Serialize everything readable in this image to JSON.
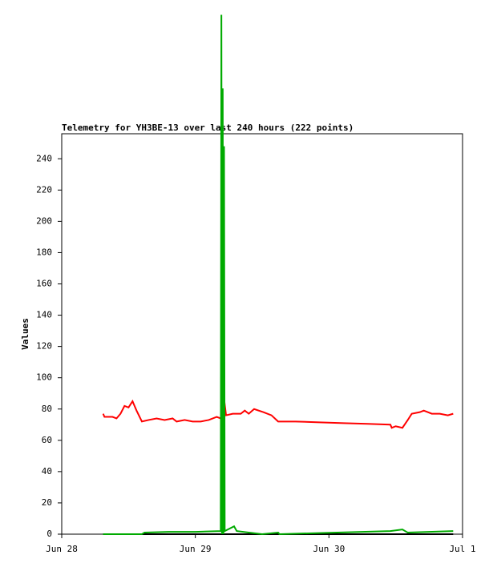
{
  "chart_data": {
    "type": "line",
    "title": "Telemetry for YH3BE-13 over last 240 hours (222 points)",
    "y_label": "Values",
    "xlim": [
      0,
      3
    ],
    "xticks": [
      {
        "value": 0,
        "label": "Jun 28"
      },
      {
        "value": 1,
        "label": "Jun 29"
      },
      {
        "value": 2,
        "label": "Jun 30"
      },
      {
        "value": 3,
        "label": "Jul 1"
      }
    ],
    "ylim": [
      0,
      256
    ],
    "yticks": [
      0,
      20,
      40,
      60,
      80,
      100,
      120,
      140,
      160,
      180,
      200,
      220,
      240
    ],
    "series": [
      {
        "name": "black",
        "color": "#000000",
        "x": [
          0.31,
          1.0,
          2.0,
          2.93
        ],
        "values": [
          0,
          0,
          0,
          0
        ]
      },
      {
        "name": "red",
        "color": "#ff0000",
        "x": [
          0.31,
          0.32,
          0.38,
          0.41,
          0.44,
          0.47,
          0.5,
          0.53,
          0.56,
          0.6,
          0.65,
          0.71,
          0.77,
          0.83,
          0.86,
          0.92,
          0.98,
          1.04,
          1.1,
          1.16,
          1.19,
          1.2,
          1.22,
          1.23,
          1.28,
          1.34,
          1.37,
          1.4,
          1.44,
          1.51,
          1.57,
          1.62,
          1.75,
          1.93,
          2.11,
          2.29,
          2.46,
          2.47,
          2.5,
          2.55,
          2.59,
          2.62,
          2.68,
          2.71,
          2.77,
          2.83,
          2.89,
          2.93
        ],
        "values": [
          77,
          75,
          75,
          74,
          77,
          82,
          81,
          85,
          79,
          72,
          73,
          74,
          73,
          74,
          72,
          73,
          72,
          72,
          73,
          75,
          74,
          80,
          83,
          76,
          77,
          77,
          79,
          77,
          80,
          78,
          76,
          72,
          72,
          71.5,
          71,
          70.5,
          70,
          68,
          69,
          68,
          73,
          77,
          78,
          79,
          77,
          77,
          76,
          77
        ]
      },
      {
        "name": "green",
        "color": "#00aa00",
        "x": [
          0.31,
          0.6,
          0.62,
          0.8,
          1.0,
          1.19,
          1.195,
          1.2,
          1.205,
          1.21,
          1.215,
          1.22,
          1.29,
          1.31,
          1.4,
          1.5,
          1.62,
          1.63,
          2.46,
          2.55,
          2.59,
          2.93
        ],
        "values": [
          0,
          0,
          1,
          1.5,
          1.5,
          2,
          332,
          0,
          285,
          0,
          248,
          2,
          5,
          2,
          1,
          0,
          1,
          0,
          2,
          3,
          1,
          2
        ]
      }
    ]
  }
}
